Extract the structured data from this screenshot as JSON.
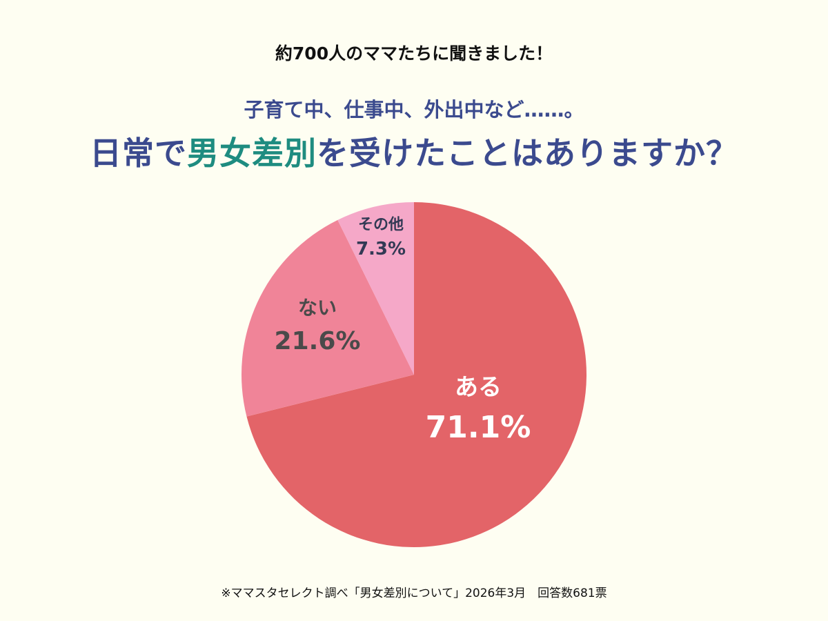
{
  "header": {
    "lead": "約700人のママたちに聞きました！",
    "subtitle": "子育て中、仕事中、外出中など……。",
    "title_pre": "日常で",
    "title_highlight": "男女差別",
    "title_post": "を受けたことはありますか？"
  },
  "colors": {
    "background": "#fefef2",
    "title": "#3b4a8e",
    "highlight": "#1e8c80"
  },
  "chart_data": {
    "type": "pie",
    "start": "top",
    "direction": "clockwise",
    "slices": [
      {
        "label": "ある",
        "value": 71.1,
        "value_label": "71.1%",
        "color": "#e36468",
        "text_color": "#ffffff"
      },
      {
        "label": "ない",
        "value": 21.6,
        "value_label": "21.6%",
        "color": "#f08498",
        "text_color": "#4a4a4a"
      },
      {
        "label": "その他",
        "value": 7.3,
        "value_label": "7.3%",
        "color": "#f5a8c8",
        "text_color": "#333a55"
      }
    ]
  },
  "footer": {
    "source": "※ママスタセレクト調べ「男女差別について」2026年3月　回答数681票"
  }
}
